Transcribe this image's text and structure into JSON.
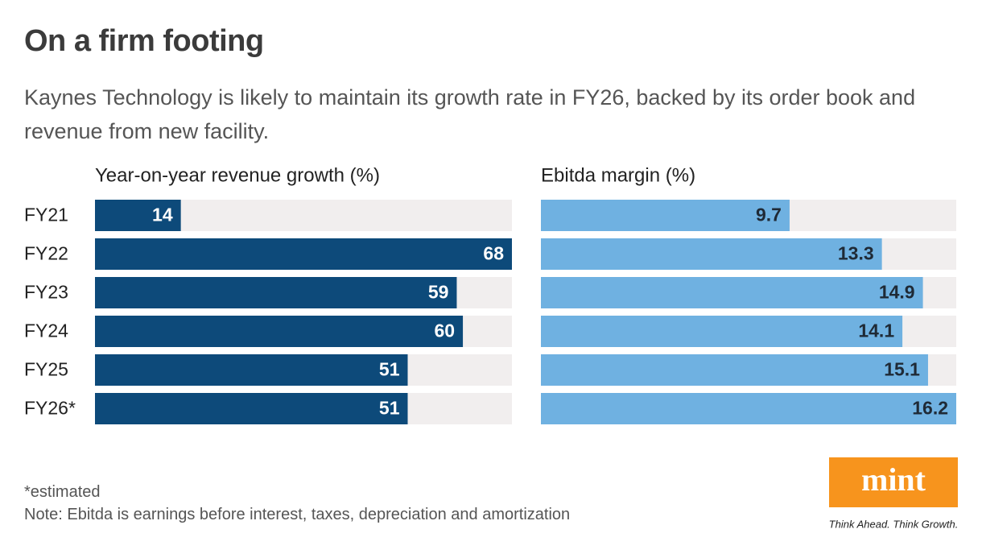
{
  "title": "On a firm footing",
  "subtitle": "Kaynes Technology is likely to maintain its growth rate in FY26, backed by its order book and revenue from new facility.",
  "footnote": "*estimated",
  "note": "Note: Ebitda is earnings before interest, taxes, depreciation and amortization",
  "logo": {
    "name": "mint",
    "tagline": "Think Ahead. Think Growth."
  },
  "chart_data": [
    {
      "type": "bar",
      "orientation": "horizontal",
      "title": "Year-on-year revenue growth (%)",
      "categories": [
        "FY21",
        "FY22",
        "FY23",
        "FY24",
        "FY25",
        "FY26*"
      ],
      "values": [
        14,
        68,
        59,
        60,
        51,
        51
      ],
      "color": "#0d4a7a",
      "label_color": "#ffffff",
      "xlim": [
        0,
        68
      ]
    },
    {
      "type": "bar",
      "orientation": "horizontal",
      "title": "Ebitda margin (%)",
      "values": [
        9.7,
        13.3,
        14.9,
        14.1,
        15.1,
        16.2
      ],
      "color": "#6fb1e1",
      "label_color": "#1f2a36",
      "xlim": [
        0,
        16.2
      ]
    }
  ]
}
